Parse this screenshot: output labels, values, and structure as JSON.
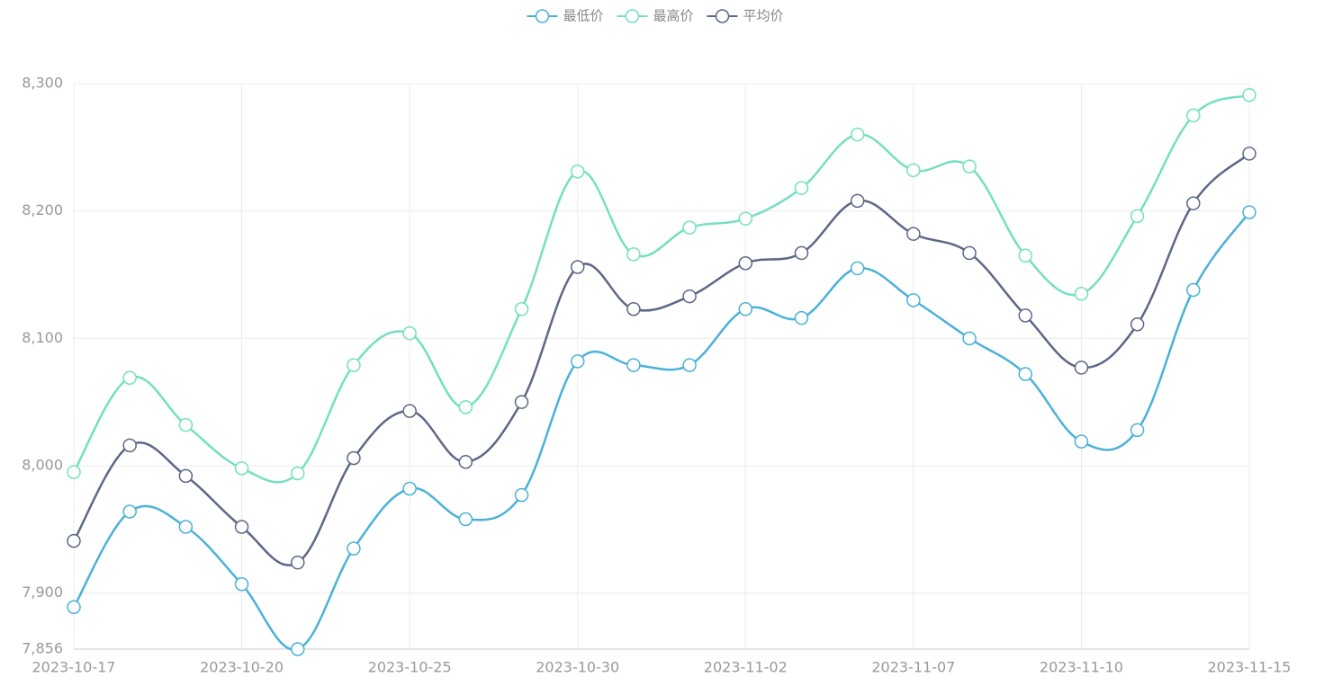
{
  "chart_data": {
    "type": "line",
    "smooth": true,
    "grid": true,
    "legend": "top",
    "categories": [
      "2023-10-17",
      null,
      null,
      "2023-10-20",
      null,
      null,
      "2023-10-25",
      null,
      null,
      "2023-10-30",
      null,
      null,
      "2023-11-02",
      null,
      null,
      "2023-11-07",
      null,
      null,
      "2023-11-10",
      null,
      null,
      "2023-11-15"
    ],
    "ylim": [
      7856,
      8300
    ],
    "yticks": [
      {
        "value": 7856,
        "label": "7,856"
      },
      {
        "value": 7900,
        "label": "7,900"
      },
      {
        "value": 8000,
        "label": "8,000"
      },
      {
        "value": 8100,
        "label": "8,100"
      },
      {
        "value": 8200,
        "label": "8,200"
      },
      {
        "value": 8300,
        "label": "8,300"
      }
    ],
    "series": [
      {
        "name": "最低价",
        "color": "#4bb1d8",
        "values": [
          7889,
          7964,
          7952,
          7907,
          7856,
          7935,
          7982,
          7958,
          7977,
          8082,
          8079,
          8079,
          8123,
          8116,
          8155,
          8130,
          8100,
          8072,
          8019,
          8028,
          8138,
          8199
        ]
      },
      {
        "name": "最高价",
        "color": "#74e0c0",
        "values": [
          7995,
          8069,
          8032,
          7998,
          7994,
          8079,
          8104,
          8046,
          8123,
          8231,
          8166,
          8187,
          8194,
          8218,
          8260,
          8232,
          8235,
          8165,
          8135,
          8196,
          8275,
          8291
        ]
      },
      {
        "name": "平均价",
        "color": "#5d6787",
        "values": [
          7941,
          8016,
          7992,
          7952,
          7924,
          8006,
          8043,
          8003,
          8050,
          8156,
          8123,
          8133,
          8159,
          8167,
          8208,
          8182,
          8167,
          8118,
          8077,
          8111,
          8206,
          8245
        ]
      }
    ]
  }
}
